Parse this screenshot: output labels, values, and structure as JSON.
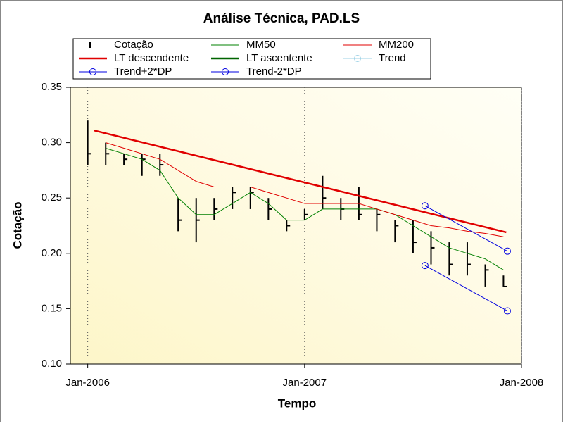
{
  "chart_data": {
    "type": "stock",
    "title": "Análise Técnica, PAD.LS",
    "x_label": "Tempo",
    "y_label": "Cotação",
    "xlim": [
      2005.92,
      2008
    ],
    "ylim": [
      0.1,
      0.35
    ],
    "xticks": [
      {
        "value": 2006,
        "label": "Jan-2006"
      },
      {
        "value": 2007,
        "label": "Jan-2007"
      },
      {
        "value": 2008,
        "label": "Jan-2008"
      }
    ],
    "yticks": [
      {
        "value": 0.1,
        "label": "0.10"
      },
      {
        "value": 0.15,
        "label": "0.15"
      },
      {
        "value": 0.2,
        "label": "0.20"
      },
      {
        "value": 0.25,
        "label": "0.25"
      },
      {
        "value": 0.3,
        "label": "0.30"
      },
      {
        "value": 0.35,
        "label": "0.35"
      }
    ],
    "grid": true,
    "legend_position": "top",
    "series": [
      {
        "name": "Cotação",
        "color": "#000000",
        "style": "ohlc",
        "x": [
          2006.0,
          2006.083,
          2006.167,
          2006.25,
          2006.333,
          2006.417,
          2006.5,
          2006.583,
          2006.667,
          2006.75,
          2006.833,
          2006.917,
          2007.0,
          2007.083,
          2007.167,
          2007.25,
          2007.333,
          2007.417,
          2007.5,
          2007.583,
          2007.667,
          2007.75,
          2007.833,
          2007.917
        ],
        "values": [
          0.29,
          0.29,
          0.285,
          0.285,
          0.28,
          0.23,
          0.23,
          0.24,
          0.255,
          0.255,
          0.24,
          0.225,
          0.235,
          0.25,
          0.24,
          0.235,
          0.235,
          0.225,
          0.21,
          0.205,
          0.19,
          0.19,
          0.185,
          0.17
        ],
        "low": [
          0.28,
          0.28,
          0.28,
          0.27,
          0.27,
          0.22,
          0.21,
          0.23,
          0.24,
          0.24,
          0.23,
          0.22,
          0.23,
          0.24,
          0.23,
          0.23,
          0.22,
          0.21,
          0.2,
          0.19,
          0.18,
          0.18,
          0.17,
          0.17
        ],
        "high": [
          0.32,
          0.3,
          0.29,
          0.29,
          0.29,
          0.25,
          0.25,
          0.25,
          0.26,
          0.26,
          0.25,
          0.23,
          0.24,
          0.27,
          0.25,
          0.26,
          0.24,
          0.23,
          0.23,
          0.22,
          0.21,
          0.21,
          0.19,
          0.18
        ]
      },
      {
        "name": "MM50",
        "color": "#008000",
        "style": "line",
        "x": [
          2006.0,
          2006.083,
          2006.167,
          2006.25,
          2006.333,
          2006.417,
          2006.5,
          2006.583,
          2006.667,
          2006.75,
          2006.833,
          2006.917,
          2007.0,
          2007.083,
          2007.167,
          2007.25,
          2007.333,
          2007.417,
          2007.5,
          2007.583,
          2007.667,
          2007.75,
          2007.833,
          2007.917
        ],
        "values": [
          null,
          0.295,
          0.29,
          0.285,
          0.275,
          0.25,
          0.235,
          0.235,
          0.245,
          0.255,
          0.245,
          0.23,
          0.23,
          0.24,
          0.24,
          0.24,
          0.24,
          0.235,
          0.225,
          0.215,
          0.205,
          0.2,
          0.195,
          0.185
        ]
      },
      {
        "name": "MM200",
        "color": "#e00000",
        "style": "line",
        "x": [
          2006.0,
          2006.083,
          2006.167,
          2006.25,
          2006.333,
          2006.417,
          2006.5,
          2006.583,
          2006.667,
          2006.75,
          2006.833,
          2006.917,
          2007.0,
          2007.083,
          2007.167,
          2007.25,
          2007.333,
          2007.417,
          2007.5,
          2007.583,
          2007.667,
          2007.75,
          2007.833,
          2007.917
        ],
        "values": [
          null,
          0.3,
          0.295,
          0.29,
          0.285,
          0.275,
          0.265,
          0.26,
          0.26,
          0.26,
          0.255,
          0.25,
          0.245,
          0.245,
          0.245,
          0.245,
          0.24,
          0.235,
          0.23,
          0.225,
          0.223,
          0.22,
          0.218,
          0.215
        ]
      },
      {
        "name": "LT descendente",
        "color": "#e00000",
        "style": "thick",
        "x": [
          2006.03,
          2007.93
        ],
        "values": [
          0.311,
          0.219
        ]
      },
      {
        "name": "LT ascentente",
        "color": "#006400",
        "style": "thick",
        "x": [],
        "values": []
      },
      {
        "name": "Trend",
        "color": "#9ed2e6",
        "style": "marker",
        "x": [],
        "values": []
      },
      {
        "name": "Trend+2*DP",
        "color": "#0000e0",
        "style": "marker",
        "x": [
          2007.555,
          2007.935
        ],
        "values": [
          0.243,
          0.202
        ]
      },
      {
        "name": "Trend-2*DP",
        "color": "#0000e0",
        "style": "marker",
        "x": [
          2007.555,
          2007.935
        ],
        "values": [
          0.189,
          0.148
        ]
      }
    ]
  }
}
